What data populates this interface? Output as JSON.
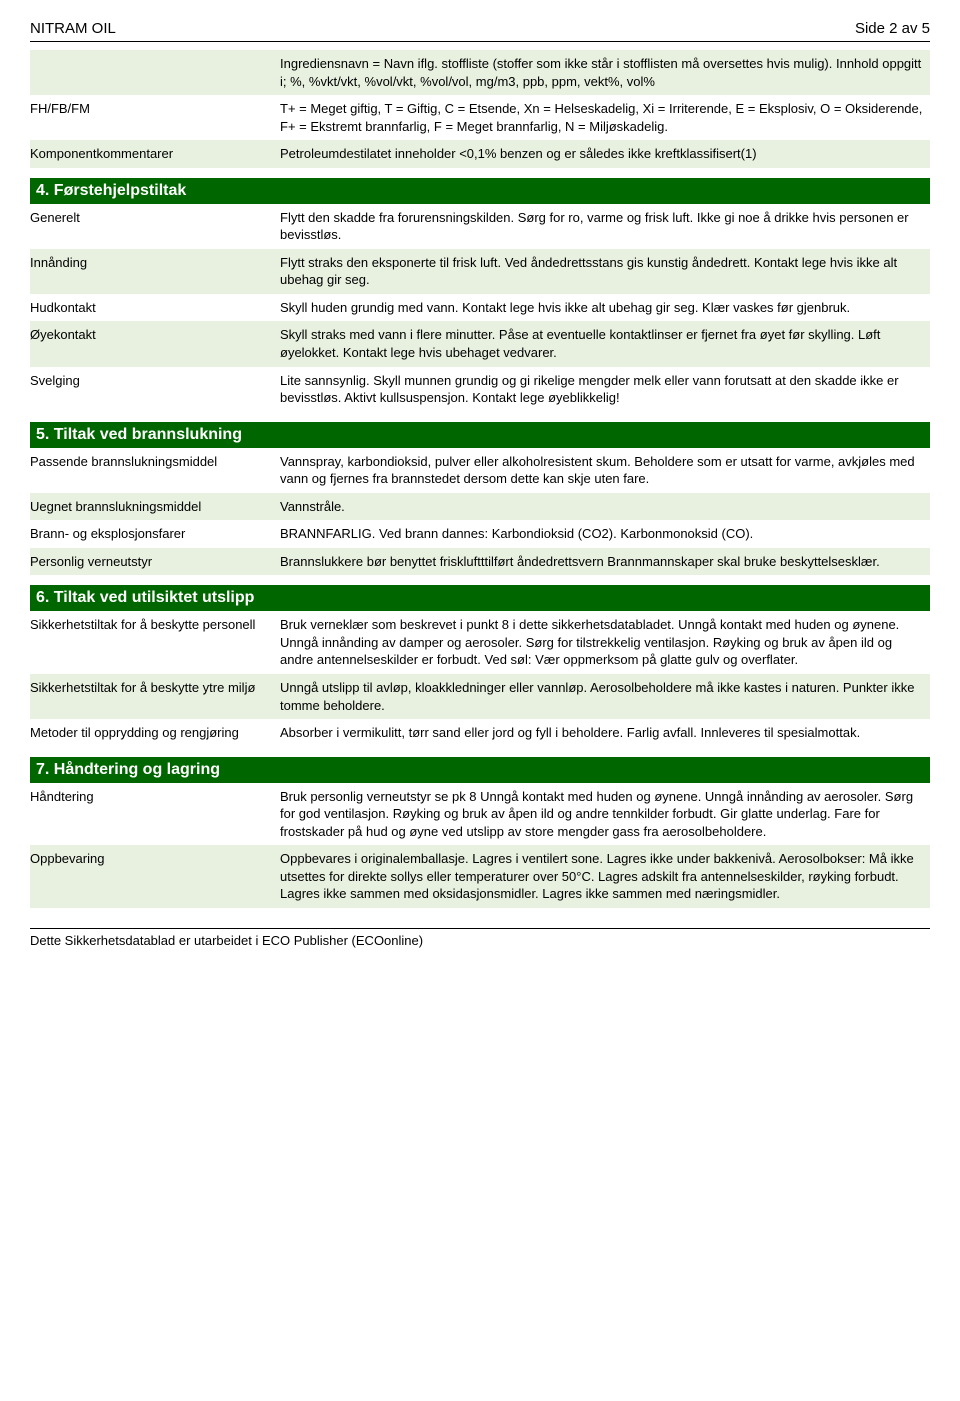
{
  "header": {
    "title": "NITRAM OIL",
    "page": "Side 2 av 5"
  },
  "intro_rows": [
    {
      "key": "",
      "val": "Ingrediensnavn = Navn iflg. stoffliste (stoffer som ikke står i stofflisten må oversettes hvis mulig). Innhold oppgitt i; %, %vkt/vkt, %vol/vkt, %vol/vol, mg/m3, ppb, ppm, vekt%, vol%",
      "alt": true
    },
    {
      "key": "FH/FB/FM",
      "val": "T+ = Meget giftig, T = Giftig, C = Etsende, Xn = Helseskadelig, Xi = Irriterende, E = Eksplosiv, O = Oksiderende, F+ = Ekstremt brannfarlig, F = Meget brannfarlig, N = Miljøskadelig.",
      "alt": false
    },
    {
      "key": "Komponentkommentarer",
      "val": "Petroleumdestilatet inneholder <0,1% benzen og er således ikke kreftklassifisert(1)",
      "alt": true
    }
  ],
  "sections": [
    {
      "title": "4. Førstehjelpstiltak",
      "rows": [
        {
          "key": "Generelt",
          "val": "Flytt den skadde fra forurensningskilden. Sørg for ro, varme og frisk luft. Ikke gi noe å drikke hvis personen er bevisstløs.",
          "alt": false
        },
        {
          "key": "Innånding",
          "val": "Flytt straks den eksponerte til frisk luft. Ved åndedrettsstans gis kunstig åndedrett. Kontakt lege hvis ikke alt ubehag gir seg.",
          "alt": true
        },
        {
          "key": "Hudkontakt",
          "val": "Skyll huden grundig med vann. Kontakt lege hvis ikke alt ubehag gir seg. Klær vaskes før gjenbruk.",
          "alt": false
        },
        {
          "key": "Øyekontakt",
          "val": "Skyll straks med vann i flere minutter. Påse at eventuelle kontaktlinser er fjernet fra øyet før skylling. Løft øyelokket. Kontakt lege hvis ubehaget vedvarer.",
          "alt": true
        },
        {
          "key": "Svelging",
          "val": "Lite sannsynlig. Skyll munnen grundig og gi rikelige mengder melk eller vann forutsatt at den skadde ikke er bevisstløs. Aktivt kullsuspensjon. Kontakt lege øyeblikkelig!",
          "alt": false
        }
      ]
    },
    {
      "title": "5. Tiltak ved brannslukning",
      "rows": [
        {
          "key": "Passende brannslukningsmiddel",
          "val": "Vannspray, karbondioksid, pulver eller alkoholresistent skum. Beholdere som er utsatt for varme, avkjøles med vann og fjernes fra brannstedet dersom dette kan skje uten fare.",
          "alt": false
        },
        {
          "key": "Uegnet brannslukningsmiddel",
          "val": "Vannstråle.",
          "alt": true
        },
        {
          "key": "Brann- og eksplosjonsfarer",
          "val": "BRANNFARLIG. Ved brann dannes: Karbondioksid (CO2). Karbonmonoksid (CO).",
          "alt": false
        },
        {
          "key": "Personlig verneutstyr",
          "val": "Brannslukkere bør benyttet friskluftttilført åndedrettsvern Brannmannskaper skal bruke beskyttelsesklær.",
          "alt": true
        }
      ]
    },
    {
      "title": "6. Tiltak ved utilsiktet utslipp",
      "rows": [
        {
          "key": "Sikkerhetstiltak for å beskytte personell",
          "val": "Bruk verneklær som beskrevet i punkt 8 i dette sikkerhetsdatabladet. Unngå kontakt med huden og øynene. Unngå innånding av damper og aerosoler. Sørg for tilstrekkelig ventilasjon. Røyking og bruk av åpen ild og andre antennelseskilder er forbudt. Ved søl: Vær oppmerksom på glatte gulv og overflater.",
          "alt": false
        },
        {
          "key": "Sikkerhetstiltak for å beskytte ytre miljø",
          "val": "Unngå utslipp til avløp, kloakkledninger eller vannløp. Aerosolbeholdere må ikke kastes i naturen. Punkter ikke tomme beholdere.",
          "alt": true
        },
        {
          "key": "Metoder til opprydding og rengjøring",
          "val": "Absorber i vermikulitt, tørr sand eller jord og fyll i beholdere. Farlig avfall. Innleveres til spesialmottak.",
          "alt": false
        }
      ]
    },
    {
      "title": "7. Håndtering og lagring",
      "rows": [
        {
          "key": "Håndtering",
          "val": "Bruk personlig verneutstyr se pk 8 Unngå kontakt med huden og øynene. Unngå innånding av aerosoler. Sørg for god ventilasjon. Røyking og bruk av åpen ild og andre tennkilder forbudt. Gir glatte underlag. Fare for frostskader på hud og øyne ved utslipp av store mengder gass fra aerosolbeholdere.",
          "alt": false
        },
        {
          "key": "Oppbevaring",
          "val": "Oppbevares i originalemballasje. Lagres i ventilert sone. Lagres ikke under bakkenivå. Aerosolbokser: Må ikke utsettes for direkte sollys eller temperaturer over 50°C. Lagres adskilt fra antennelseskilder, røyking forbudt. Lagres ikke sammen med oksidasjonsmidler. Lagres ikke sammen med næringsmidler.",
          "alt": true
        }
      ]
    }
  ],
  "footer": "Dette Sikkerhetsdatablad er utarbeidet i ECO Publisher (ECOonline)"
}
